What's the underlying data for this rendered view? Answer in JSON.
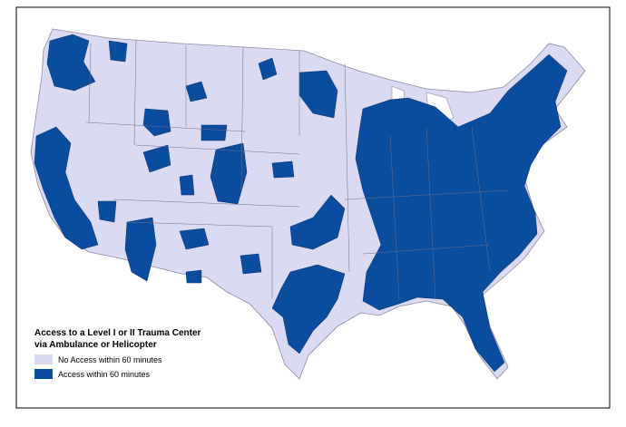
{
  "legend": {
    "title": [
      "Access to a Level I or II Trauma Center",
      "via Ambulance or Helicopter"
    ],
    "items": [
      "No Access within 60 minutes",
      "Access within 60 minutes"
    ]
  }
}
